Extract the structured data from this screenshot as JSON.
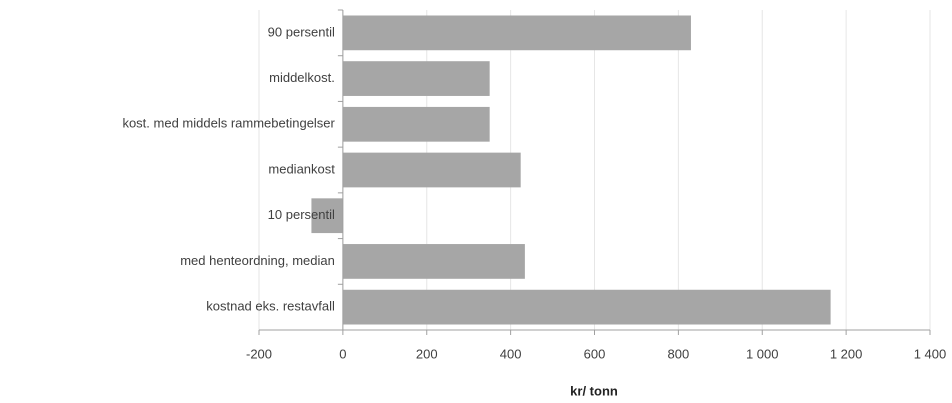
{
  "chart_data": {
    "type": "bar",
    "orientation": "horizontal",
    "categories": [
      "90 persentil",
      "middelkost.",
      "kost. med middels rammebetingelser",
      "mediankost",
      "10 persentil",
      "med henteordning, median",
      "kostnad eks. restavfall"
    ],
    "values": [
      830,
      350,
      350,
      424,
      -75,
      434,
      1163
    ],
    "color": "#a6a6a6",
    "xlabel": "kr/ tonn",
    "xlim": [
      -200,
      1400
    ],
    "xticks": [
      -200,
      0,
      200,
      400,
      600,
      800,
      {
        "value": 1000,
        "label": "1 000"
      },
      {
        "value": 1200,
        "label": "1 200"
      },
      {
        "value": 1400,
        "label": "1 400"
      }
    ],
    "grid": true
  }
}
